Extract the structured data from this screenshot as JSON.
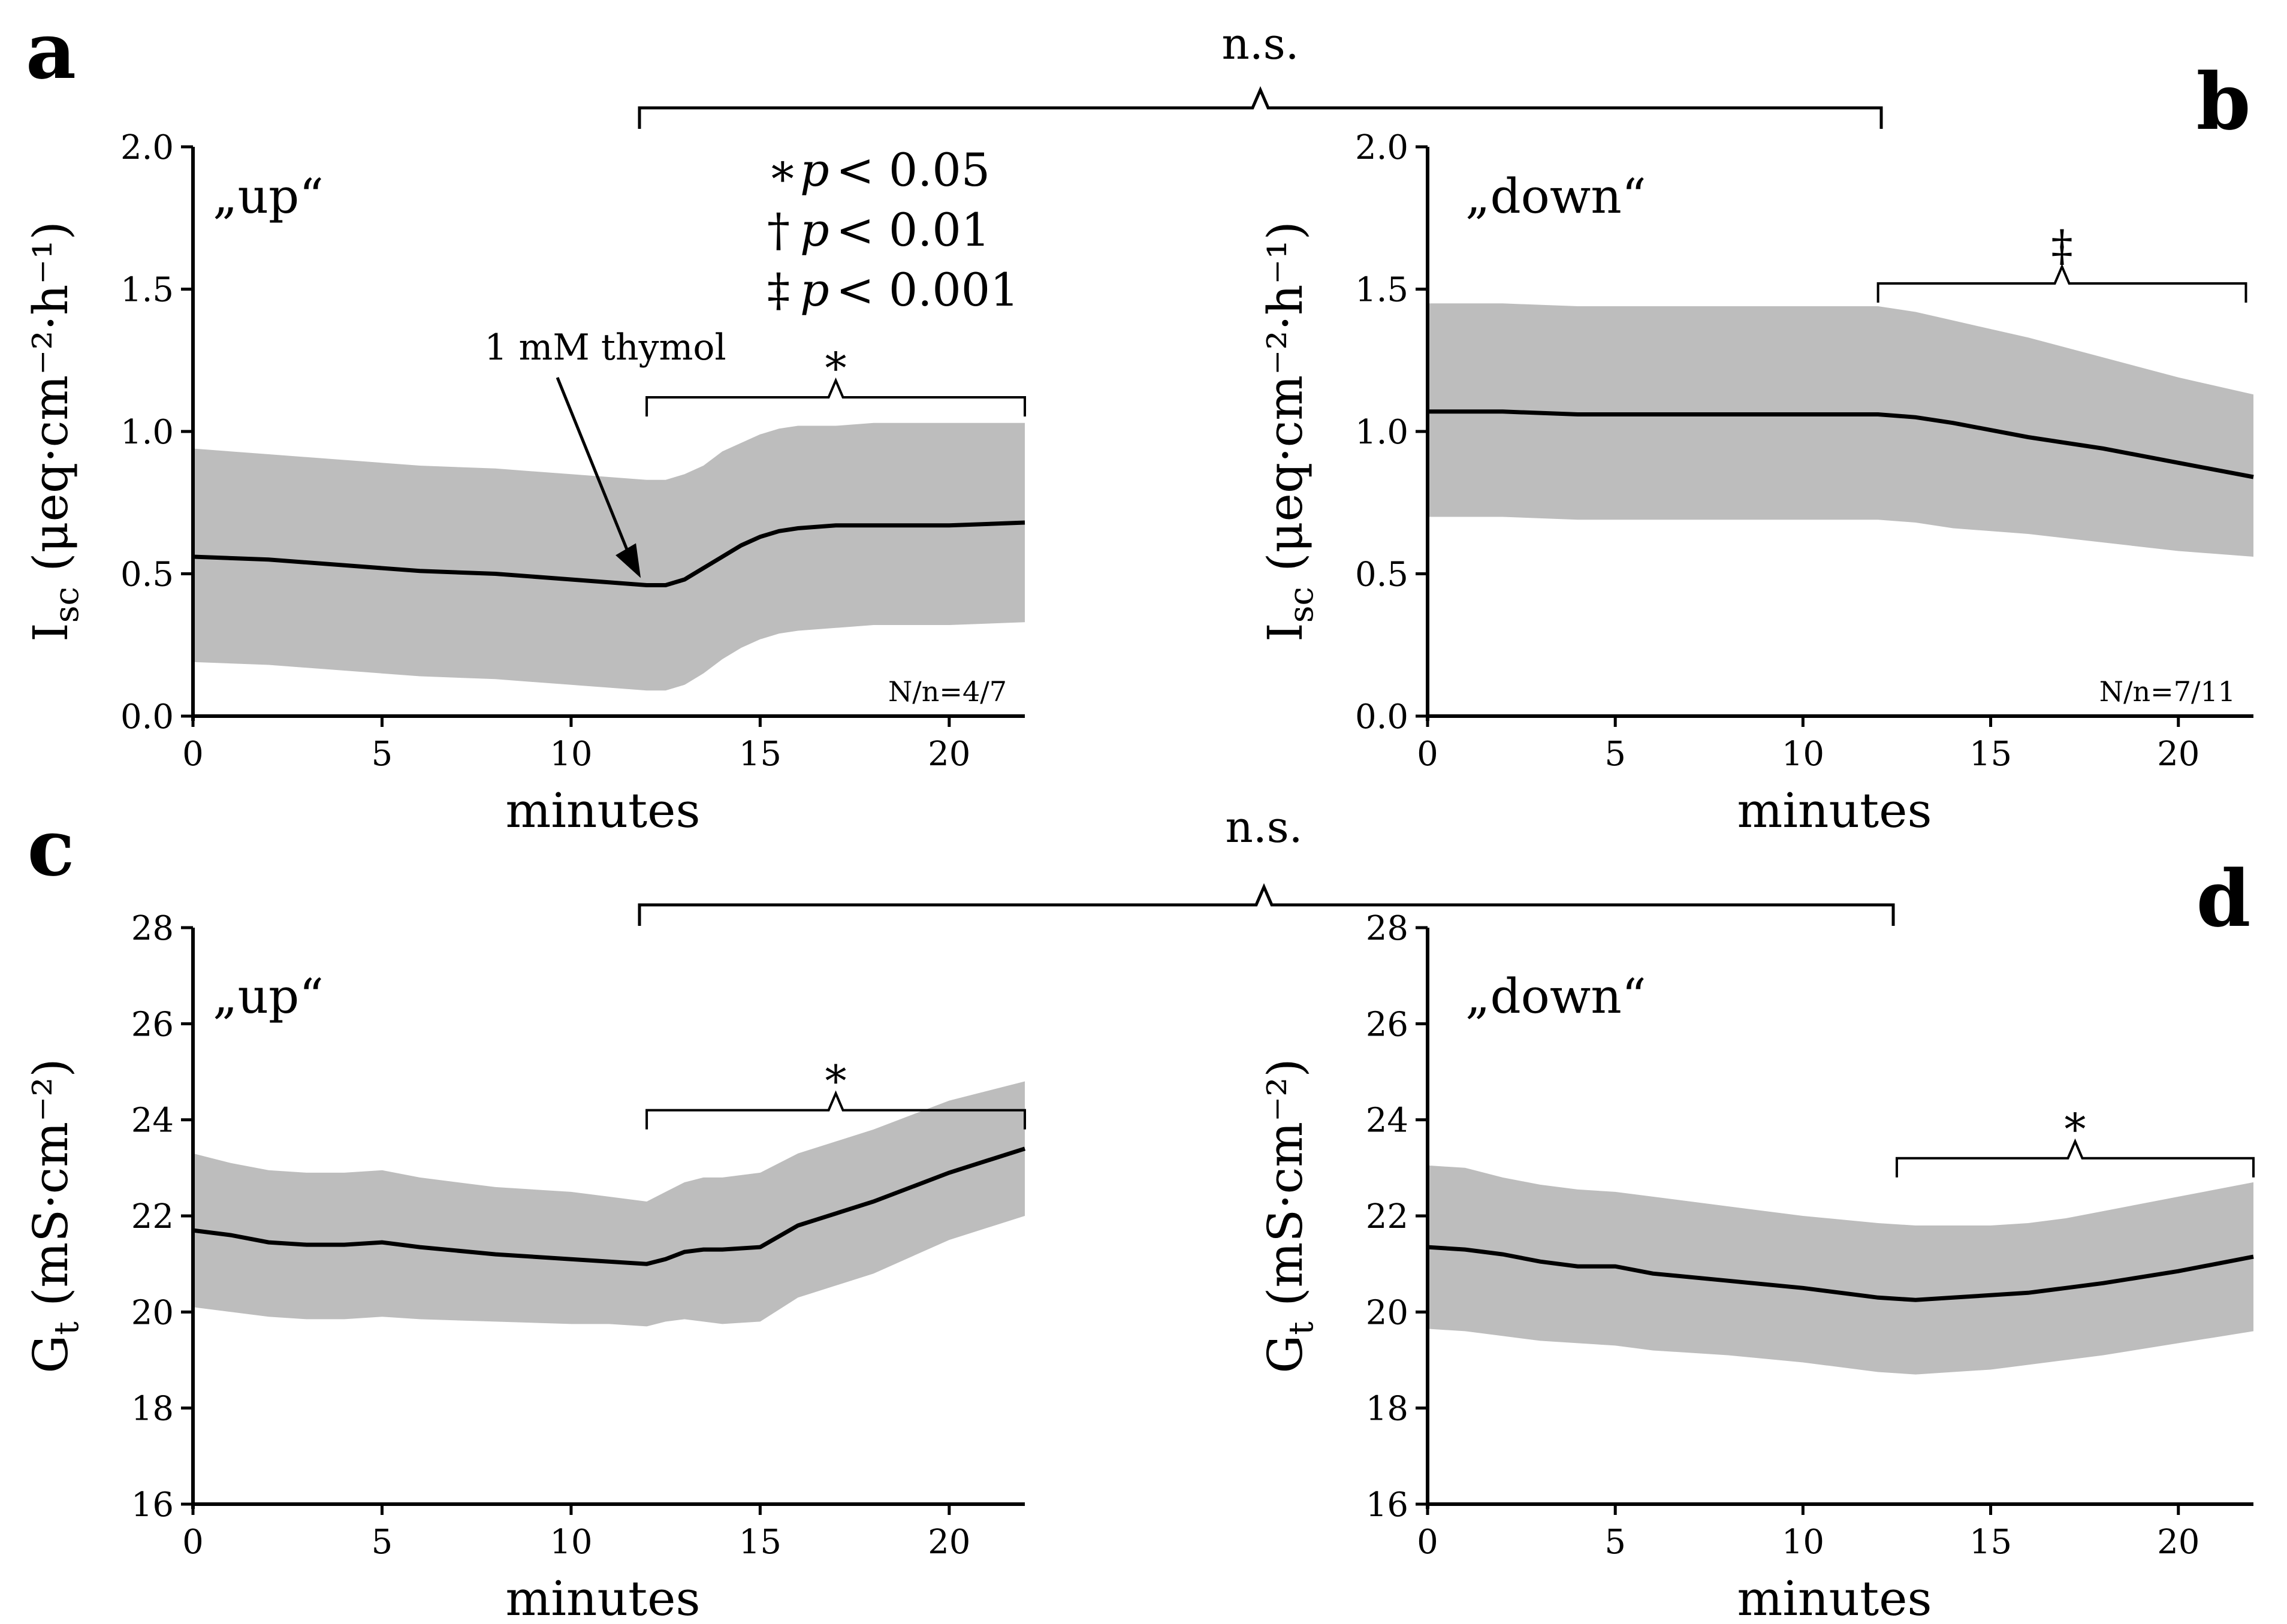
{
  "figure": {
    "top_ns_label": "n.s.",
    "bottom_ns_label": "n.s."
  },
  "legend": {
    "symbols": [
      "∗",
      "†",
      "‡"
    ],
    "p_label": "p",
    "thresholds": [
      "< 0.05",
      "< 0.01",
      "< 0.001"
    ]
  },
  "chart_data": [
    {
      "panel": "a",
      "type": "area",
      "condition": "„up“",
      "xlabel": "minutes",
      "ylabel_main": "I",
      "ylabel_sub": "sc",
      "ylabel_rest": "(μeq·cm⁻²·h⁻¹)",
      "xlim": [
        0,
        22
      ],
      "ylim": [
        0,
        2.0
      ],
      "xticks": [
        0,
        5,
        10,
        15,
        20
      ],
      "yticks": [
        "0.0",
        "0.5",
        "1.0",
        "1.5",
        "2.0"
      ],
      "annotation": "1 mM thymol",
      "annotation_x": 12,
      "n_label": "N/n=4/7",
      "significance": {
        "symbol": "∗",
        "x_start": 12,
        "x_end": 22,
        "y": 1.12
      },
      "series": [
        {
          "x": [
            0,
            2,
            4,
            6,
            8,
            10,
            11,
            12,
            12.5,
            13,
            13.5,
            14,
            14.5,
            15,
            15.5,
            16,
            17,
            18,
            20,
            22
          ],
          "mean": [
            0.56,
            0.55,
            0.53,
            0.51,
            0.5,
            0.48,
            0.47,
            0.46,
            0.46,
            0.48,
            0.52,
            0.56,
            0.6,
            0.63,
            0.65,
            0.66,
            0.67,
            0.67,
            0.67,
            0.68
          ],
          "upper": [
            0.94,
            0.92,
            0.9,
            0.88,
            0.87,
            0.85,
            0.84,
            0.83,
            0.83,
            0.85,
            0.88,
            0.93,
            0.96,
            0.99,
            1.01,
            1.02,
            1.02,
            1.03,
            1.03,
            1.03
          ],
          "lower": [
            0.19,
            0.18,
            0.16,
            0.14,
            0.13,
            0.11,
            0.1,
            0.09,
            0.09,
            0.11,
            0.15,
            0.2,
            0.24,
            0.27,
            0.29,
            0.3,
            0.31,
            0.32,
            0.32,
            0.33
          ]
        }
      ]
    },
    {
      "panel": "b",
      "type": "area",
      "condition": "„down“",
      "xlabel": "minutes",
      "ylabel_main": "I",
      "ylabel_sub": "sc",
      "ylabel_rest": "(μeq·cm⁻²·h⁻¹)",
      "xlim": [
        0,
        22
      ],
      "ylim": [
        0,
        2.0
      ],
      "xticks": [
        0,
        5,
        10,
        15,
        20
      ],
      "yticks": [
        "0.0",
        "0.5",
        "1.0",
        "1.5",
        "2.0"
      ],
      "n_label": "N/n=7/11",
      "significance": {
        "symbol": "‡",
        "x_start": 12,
        "x_end": 21.8,
        "y": 1.52
      },
      "series": [
        {
          "x": [
            0,
            2,
            4,
            6,
            8,
            10,
            12,
            13,
            14,
            16,
            18,
            20,
            22
          ],
          "mean": [
            1.07,
            1.07,
            1.06,
            1.06,
            1.06,
            1.06,
            1.06,
            1.05,
            1.03,
            0.98,
            0.94,
            0.89,
            0.84
          ],
          "upper": [
            1.45,
            1.45,
            1.44,
            1.44,
            1.44,
            1.44,
            1.44,
            1.42,
            1.39,
            1.33,
            1.26,
            1.19,
            1.13
          ],
          "lower": [
            0.7,
            0.7,
            0.69,
            0.69,
            0.69,
            0.69,
            0.69,
            0.68,
            0.66,
            0.64,
            0.61,
            0.58,
            0.56
          ]
        }
      ]
    },
    {
      "panel": "c",
      "type": "area",
      "condition": "„up“",
      "xlabel": "minutes",
      "ylabel_main": "G",
      "ylabel_sub": "t",
      "ylabel_rest": "(mS·cm⁻²)",
      "xlim": [
        0,
        22
      ],
      "ylim": [
        16,
        28
      ],
      "xticks": [
        0,
        5,
        10,
        15,
        20
      ],
      "yticks": [
        "16",
        "18",
        "20",
        "22",
        "24",
        "26",
        "28"
      ],
      "significance": {
        "symbol": "∗",
        "x_start": 12,
        "x_end": 22,
        "y": 24.2
      },
      "series": [
        {
          "x": [
            0,
            1,
            2,
            3,
            4,
            5,
            6,
            8,
            10,
            11,
            12,
            12.5,
            13,
            13.5,
            14,
            15,
            16,
            18,
            20,
            22
          ],
          "mean": [
            21.7,
            21.6,
            21.45,
            21.4,
            21.4,
            21.45,
            21.35,
            21.2,
            21.1,
            21.05,
            21.0,
            21.1,
            21.25,
            21.3,
            21.3,
            21.35,
            21.8,
            22.3,
            22.9,
            23.4
          ],
          "upper": [
            23.3,
            23.1,
            22.95,
            22.9,
            22.9,
            22.95,
            22.8,
            22.6,
            22.5,
            22.4,
            22.3,
            22.5,
            22.7,
            22.8,
            22.8,
            22.9,
            23.3,
            23.8,
            24.4,
            24.8
          ],
          "lower": [
            20.1,
            20.0,
            19.9,
            19.85,
            19.85,
            19.9,
            19.85,
            19.8,
            19.75,
            19.75,
            19.7,
            19.8,
            19.85,
            19.8,
            19.75,
            19.8,
            20.3,
            20.8,
            21.5,
            22.0
          ]
        }
      ]
    },
    {
      "panel": "d",
      "type": "area",
      "condition": "„down“",
      "xlabel": "minutes",
      "ylabel_main": "G",
      "ylabel_sub": "t",
      "ylabel_rest": "(mS·cm⁻²)",
      "xlim": [
        0,
        22
      ],
      "ylim": [
        16,
        28
      ],
      "xticks": [
        0,
        5,
        10,
        15,
        20
      ],
      "yticks": [
        "16",
        "18",
        "20",
        "22",
        "24",
        "26",
        "28"
      ],
      "significance": {
        "symbol": "∗",
        "x_start": 12.5,
        "x_end": 22,
        "y": 23.2
      },
      "series": [
        {
          "x": [
            0,
            1,
            2,
            3,
            4,
            5,
            6,
            8,
            10,
            12,
            13,
            14,
            15,
            16,
            17,
            18,
            20,
            22
          ],
          "mean": [
            21.35,
            21.3,
            21.2,
            21.05,
            20.95,
            20.95,
            20.8,
            20.65,
            20.5,
            20.3,
            20.25,
            20.3,
            20.35,
            20.4,
            20.5,
            20.6,
            20.85,
            21.15
          ],
          "upper": [
            23.05,
            23.0,
            22.8,
            22.65,
            22.55,
            22.5,
            22.4,
            22.2,
            22.0,
            21.85,
            21.8,
            21.8,
            21.8,
            21.85,
            21.95,
            22.1,
            22.4,
            22.7
          ],
          "lower": [
            19.65,
            19.6,
            19.5,
            19.4,
            19.35,
            19.3,
            19.2,
            19.1,
            18.95,
            18.75,
            18.7,
            18.75,
            18.8,
            18.9,
            19.0,
            19.1,
            19.35,
            19.6
          ]
        }
      ]
    }
  ]
}
